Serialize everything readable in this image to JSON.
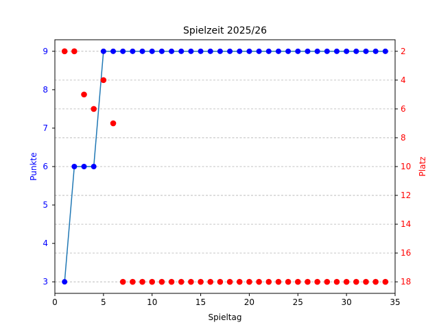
{
  "chart_data": {
    "type": "line",
    "title": "Spielzeit 2025/26",
    "xlabel": "Spieltag",
    "ylabel_left": "Punkte",
    "ylabel_right": "Platz",
    "xlim": [
      0,
      35
    ],
    "ylim_left": [
      2.7,
      9.3
    ],
    "ylim_right": [
      18.8,
      1.2
    ],
    "right_axis_inverted": true,
    "x_ticks": [
      0,
      5,
      10,
      15,
      20,
      25,
      30,
      35
    ],
    "y_left_ticks": [
      3,
      4,
      5,
      6,
      7,
      8,
      9
    ],
    "y_right_ticks": [
      2,
      4,
      6,
      8,
      10,
      12,
      14,
      16,
      18
    ],
    "grid": "horizontal dashed",
    "colors": {
      "line": "#1f77b4",
      "punkte_markers": "#0000ff",
      "platz_markers": "#ff0000",
      "left_axis": "#0000ff",
      "right_axis": "#ff0000",
      "grid": "#b0b0b0"
    },
    "x": [
      1,
      2,
      3,
      4,
      5,
      6,
      7,
      8,
      9,
      10,
      11,
      12,
      13,
      14,
      15,
      16,
      17,
      18,
      19,
      20,
      21,
      22,
      23,
      24,
      25,
      26,
      27,
      28,
      29,
      30,
      31,
      32,
      33,
      34
    ],
    "series": [
      {
        "axis": "left",
        "marker": "blue circle with line",
        "values": [
          3,
          6,
          6,
          6,
          9,
          9,
          9,
          9,
          9,
          9,
          9,
          9,
          9,
          9,
          9,
          9,
          9,
          9,
          9,
          9,
          9,
          9,
          9,
          9,
          9,
          9,
          9,
          9,
          9,
          9,
          9,
          9,
          9,
          9
        ]
      },
      {
        "axis": "right",
        "marker": "red circle",
        "values": [
          2,
          2,
          5,
          6,
          4,
          7,
          18,
          18,
          18,
          18,
          18,
          18,
          18,
          18,
          18,
          18,
          18,
          18,
          18,
          18,
          18,
          18,
          18,
          18,
          18,
          18,
          18,
          18,
          18,
          18,
          18,
          18,
          18,
          18
        ]
      }
    ]
  }
}
